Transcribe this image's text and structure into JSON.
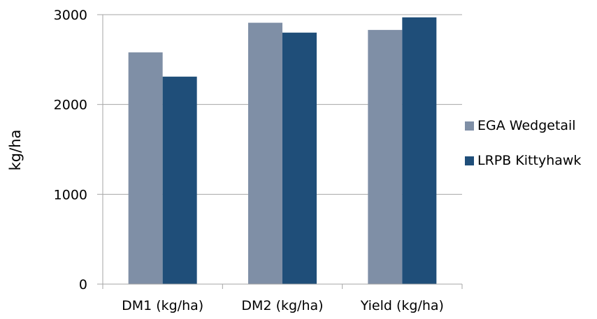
{
  "chart_data": {
    "type": "bar",
    "title": "",
    "xlabel": "",
    "ylabel": "kg/ha",
    "ylim": [
      0,
      3000
    ],
    "yticks": [
      0,
      1000,
      2000,
      3000
    ],
    "categories": [
      "DM1 (kg/ha)",
      "DM2 (kg/ha)",
      "Yield (kg/ha)"
    ],
    "series": [
      {
        "name": "EGA Wedgetail",
        "color": "#7f8fa6",
        "values": [
          2580,
          2910,
          2830
        ]
      },
      {
        "name": "LRPB Kittyhawk",
        "color": "#1f4e79",
        "values": [
          2310,
          2800,
          2970
        ]
      }
    ],
    "grid": true,
    "legend": "right"
  }
}
